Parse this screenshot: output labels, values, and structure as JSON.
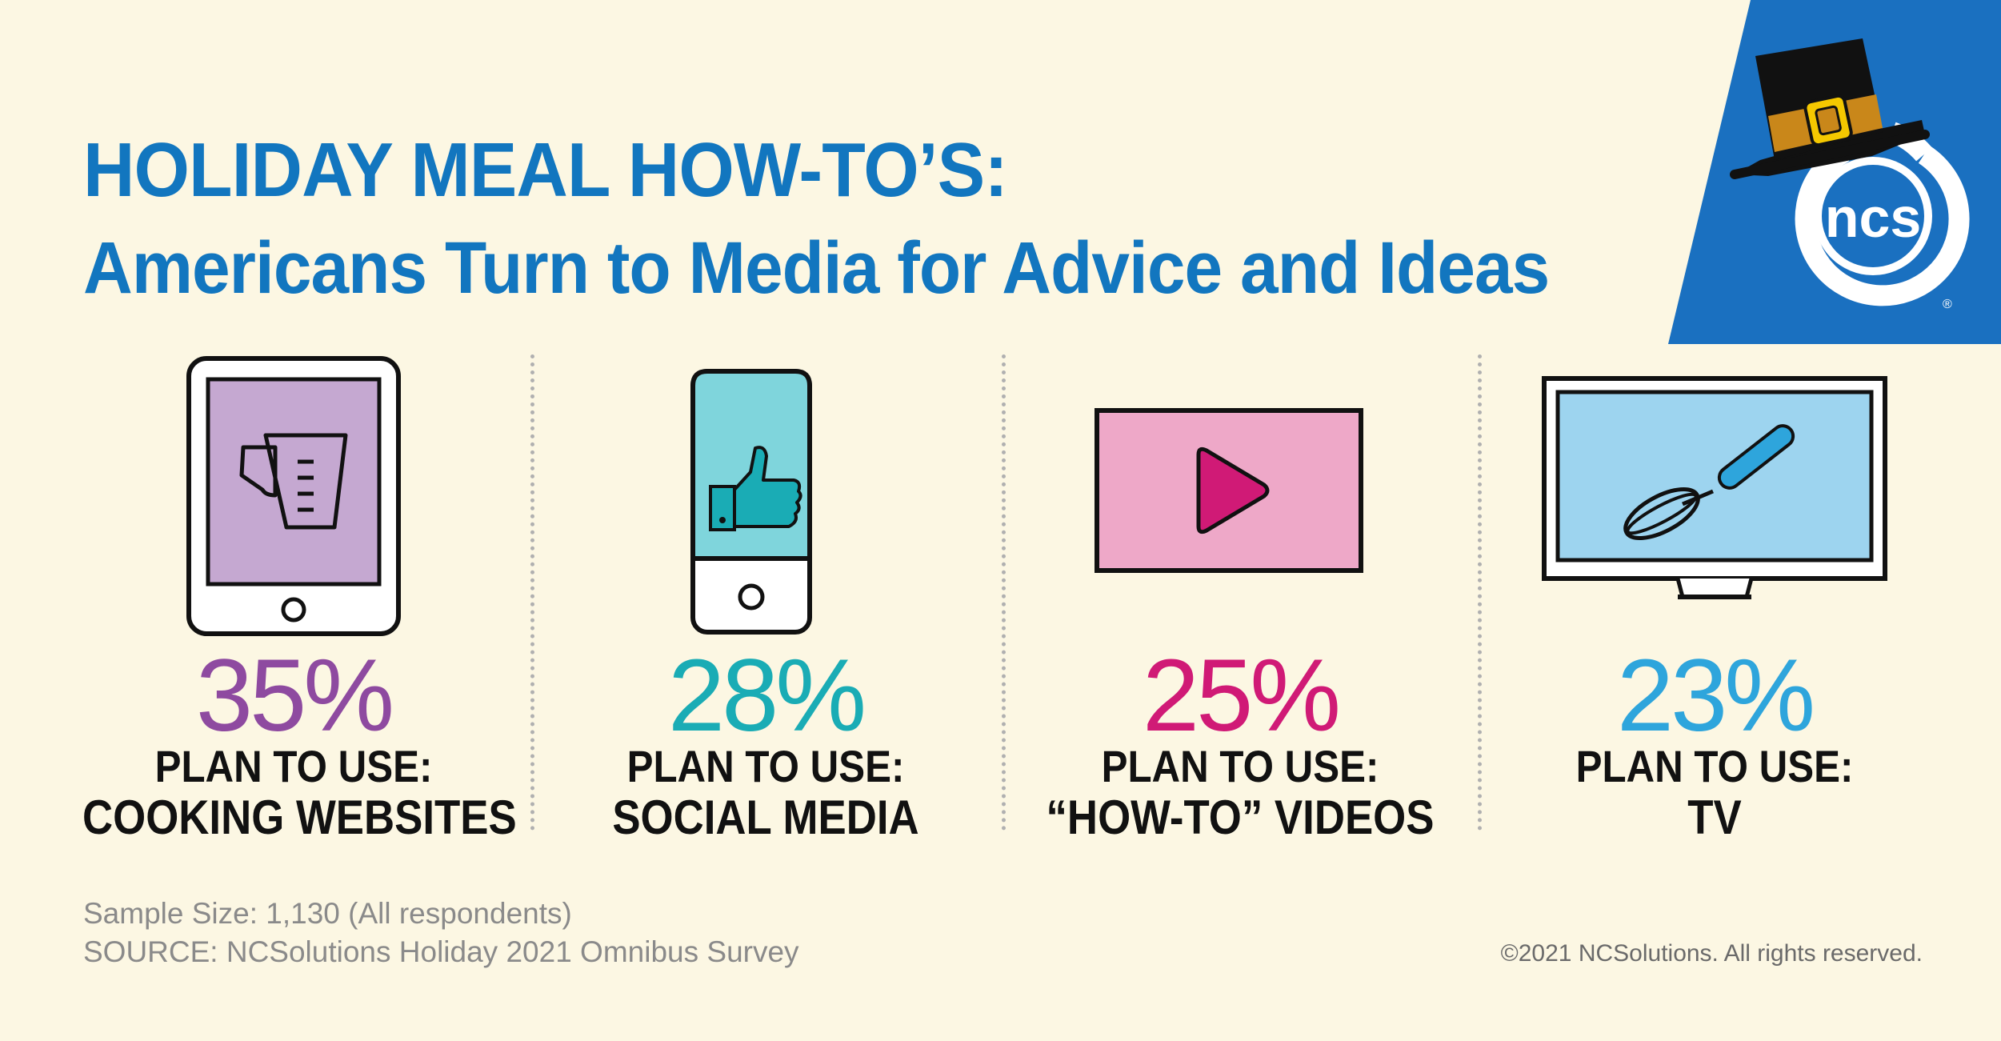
{
  "header": {
    "title": "HOLIDAY MEAL HOW-TO’S:",
    "subtitle": "Americans Turn to Media for Advice and Ideas"
  },
  "logo": {
    "text": "ncs",
    "registered": "®",
    "background_color": "#1a70c0",
    "icon": "pilgrim-hat-icon"
  },
  "stats": [
    {
      "percent": "35%",
      "label": "PLAN TO USE:",
      "medium": "COOKING WEBSITES",
      "color": "#8e4aa0",
      "icon": "tablet-measuring-cup-icon"
    },
    {
      "percent": "28%",
      "label": "PLAN TO USE:",
      "medium": "SOCIAL MEDIA",
      "color": "#1aacb5",
      "icon": "phone-thumbs-up-icon"
    },
    {
      "percent": "25%",
      "label": "PLAN TO USE:",
      "medium": "“HOW-TO” VIDEOS",
      "color": "#d01a76",
      "icon": "video-play-icon"
    },
    {
      "percent": "23%",
      "label": "PLAN TO USE:",
      "medium": "TV",
      "color": "#2ea5dc",
      "icon": "tv-whisk-icon"
    }
  ],
  "footer": {
    "sample_size": "Sample Size: 1,130 (All respondents)",
    "source": "SOURCE: NCSolutions Holiday 2021 Omnibus Survey",
    "copyright": "©2021 NCSolutions. All rights reserved."
  }
}
